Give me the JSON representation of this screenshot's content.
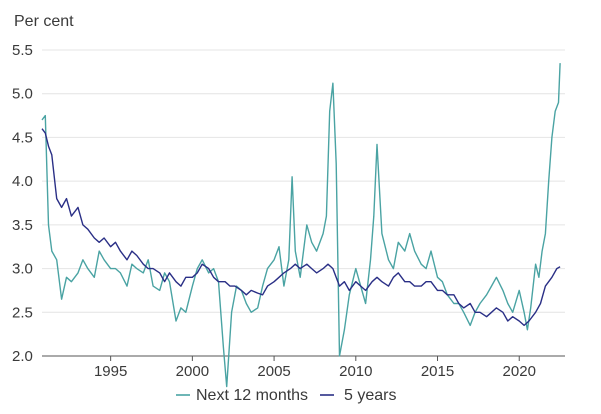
{
  "chart_data": {
    "type": "line",
    "title": "",
    "ylabel": "Per cent",
    "xlabel": "",
    "ylim": [
      2.0,
      5.5
    ],
    "xlim": [
      1990.8,
      2022.8
    ],
    "yticks": [
      2.0,
      2.5,
      3.0,
      3.5,
      4.0,
      4.5,
      5.0,
      5.5
    ],
    "ytick_labels": [
      "2.0",
      "2.5",
      "3.0",
      "3.5",
      "4.0",
      "4.5",
      "5.0",
      "5.5"
    ],
    "xticks": [
      1995,
      2000,
      2005,
      2010,
      2015,
      2020
    ],
    "xtick_labels": [
      "1995",
      "2000",
      "2005",
      "2010",
      "2015",
      "2020"
    ],
    "grid": true,
    "legend_position": "bottom-center",
    "series": [
      {
        "name": "Next 12 months",
        "color": "#4aa3a3",
        "x": [
          1990.8,
          1991.0,
          1991.2,
          1991.4,
          1991.7,
          1992.0,
          1992.3,
          1992.6,
          1993.0,
          1993.3,
          1993.6,
          1994.0,
          1994.3,
          1994.6,
          1995.0,
          1995.3,
          1995.6,
          1996.0,
          1996.3,
          1996.6,
          1997.0,
          1997.3,
          1997.6,
          1998.0,
          1998.3,
          1998.6,
          1999.0,
          1999.3,
          1999.6,
          2000.0,
          2000.3,
          2000.6,
          2001.0,
          2001.3,
          2001.6,
          2001.9,
          2002.1,
          2002.4,
          2002.7,
          2003.0,
          2003.3,
          2003.6,
          2004.0,
          2004.3,
          2004.6,
          2005.0,
          2005.3,
          2005.6,
          2005.9,
          2006.1,
          2006.3,
          2006.6,
          2007.0,
          2007.3,
          2007.6,
          2008.0,
          2008.2,
          2008.4,
          2008.6,
          2008.8,
          2009.0,
          2009.3,
          2009.6,
          2010.0,
          2010.3,
          2010.6,
          2010.9,
          2011.1,
          2011.3,
          2011.6,
          2012.0,
          2012.3,
          2012.6,
          2013.0,
          2013.3,
          2013.6,
          2014.0,
          2014.3,
          2014.6,
          2015.0,
          2015.3,
          2015.6,
          2016.0,
          2016.3,
          2016.6,
          2017.0,
          2017.3,
          2017.6,
          2018.0,
          2018.3,
          2018.6,
          2019.0,
          2019.3,
          2019.6,
          2020.0,
          2020.3,
          2020.5,
          2020.7,
          2021.0,
          2021.2,
          2021.4,
          2021.6,
          2021.8,
          2022.0,
          2022.2,
          2022.4,
          2022.5
        ],
        "values": [
          4.7,
          4.75,
          3.5,
          3.2,
          3.1,
          2.65,
          2.9,
          2.85,
          2.95,
          3.1,
          3.0,
          2.9,
          3.2,
          3.1,
          3.0,
          3.0,
          2.95,
          2.8,
          3.05,
          3.0,
          2.95,
          3.1,
          2.8,
          2.75,
          2.95,
          2.85,
          2.4,
          2.55,
          2.5,
          2.8,
          3.0,
          3.1,
          2.95,
          3.0,
          2.85,
          2.1,
          1.65,
          2.5,
          2.8,
          2.75,
          2.6,
          2.5,
          2.55,
          2.8,
          3.0,
          3.1,
          3.25,
          2.8,
          3.1,
          4.05,
          3.2,
          2.9,
          3.5,
          3.3,
          3.2,
          3.4,
          3.6,
          4.8,
          5.12,
          4.2,
          2.0,
          2.3,
          2.7,
          3.0,
          2.8,
          2.6,
          3.1,
          3.6,
          4.42,
          3.4,
          3.1,
          3.0,
          3.3,
          3.2,
          3.4,
          3.2,
          3.05,
          3.0,
          3.2,
          2.9,
          2.85,
          2.7,
          2.6,
          2.6,
          2.5,
          2.35,
          2.5,
          2.6,
          2.7,
          2.8,
          2.9,
          2.75,
          2.6,
          2.5,
          2.75,
          2.5,
          2.3,
          2.55,
          3.05,
          2.9,
          3.2,
          3.4,
          4.0,
          4.5,
          4.8,
          4.9,
          5.35
        ]
      },
      {
        "name": "5 years",
        "color": "#2a2f86",
        "x": [
          1990.8,
          1991.0,
          1991.2,
          1991.4,
          1991.7,
          1992.0,
          1992.3,
          1992.6,
          1993.0,
          1993.3,
          1993.6,
          1994.0,
          1994.3,
          1994.6,
          1995.0,
          1995.3,
          1995.6,
          1996.0,
          1996.3,
          1996.6,
          1997.0,
          1997.3,
          1997.6,
          1998.0,
          1998.3,
          1998.6,
          1999.0,
          1999.3,
          1999.6,
          2000.0,
          2000.3,
          2000.6,
          2001.0,
          2001.3,
          2001.6,
          2002.0,
          2002.3,
          2002.6,
          2003.0,
          2003.3,
          2003.6,
          2004.0,
          2004.3,
          2004.6,
          2005.0,
          2005.3,
          2005.6,
          2006.0,
          2006.3,
          2006.6,
          2007.0,
          2007.3,
          2007.6,
          2008.0,
          2008.3,
          2008.6,
          2009.0,
          2009.3,
          2009.6,
          2010.0,
          2010.3,
          2010.6,
          2011.0,
          2011.3,
          2011.6,
          2012.0,
          2012.3,
          2012.6,
          2013.0,
          2013.3,
          2013.6,
          2014.0,
          2014.3,
          2014.6,
          2015.0,
          2015.3,
          2015.6,
          2016.0,
          2016.3,
          2016.6,
          2017.0,
          2017.3,
          2017.6,
          2018.0,
          2018.3,
          2018.6,
          2019.0,
          2019.3,
          2019.6,
          2020.0,
          2020.3,
          2020.6,
          2021.0,
          2021.3,
          2021.6,
          2022.0,
          2022.3,
          2022.5
        ],
        "values": [
          4.6,
          4.55,
          4.4,
          4.3,
          3.8,
          3.7,
          3.8,
          3.6,
          3.7,
          3.5,
          3.45,
          3.35,
          3.3,
          3.35,
          3.25,
          3.3,
          3.2,
          3.1,
          3.2,
          3.15,
          3.05,
          3.0,
          3.0,
          2.95,
          2.85,
          2.95,
          2.85,
          2.8,
          2.9,
          2.9,
          2.95,
          3.05,
          3.0,
          2.9,
          2.85,
          2.85,
          2.8,
          2.8,
          2.75,
          2.7,
          2.75,
          2.72,
          2.7,
          2.8,
          2.85,
          2.9,
          2.95,
          3.0,
          3.05,
          3.0,
          3.05,
          3.0,
          2.95,
          3.0,
          3.05,
          3.0,
          2.8,
          2.85,
          2.75,
          2.85,
          2.8,
          2.75,
          2.85,
          2.9,
          2.85,
          2.8,
          2.9,
          2.95,
          2.85,
          2.85,
          2.8,
          2.8,
          2.85,
          2.85,
          2.75,
          2.75,
          2.7,
          2.7,
          2.6,
          2.55,
          2.6,
          2.5,
          2.5,
          2.45,
          2.5,
          2.55,
          2.5,
          2.4,
          2.45,
          2.4,
          2.35,
          2.4,
          2.5,
          2.6,
          2.8,
          2.9,
          3.0,
          3.02
        ]
      }
    ]
  }
}
